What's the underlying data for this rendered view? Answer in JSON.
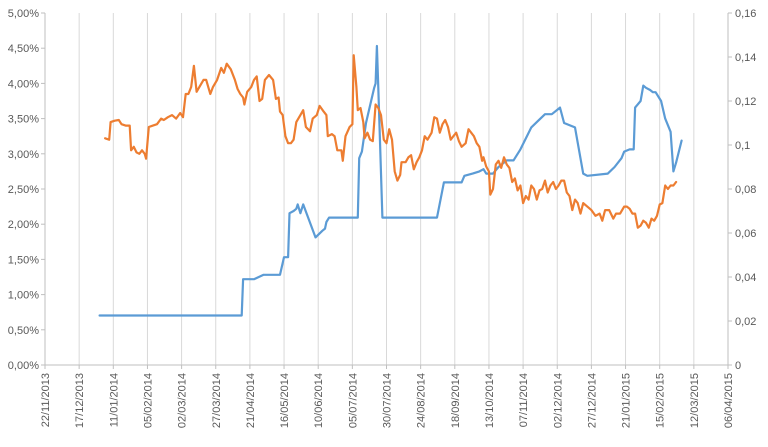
{
  "chart_data": {
    "type": "line",
    "title": "",
    "xlabel": "",
    "ylabel": "",
    "y2label": "",
    "grid": "vertical",
    "legend": "none",
    "x_ticks": [
      "22/11/2013",
      "17/12/2013",
      "11/01/2014",
      "05/02/2014",
      "02/03/2014",
      "27/03/2014",
      "21/04/2014",
      "16/05/2014",
      "10/06/2014",
      "05/07/2014",
      "30/07/2014",
      "24/08/2014",
      "18/09/2014",
      "13/10/2014",
      "07/11/2014",
      "02/12/2014",
      "27/12/2014",
      "21/01/2015",
      "15/02/2015",
      "12/03/2015",
      "06/04/2015"
    ],
    "xlim": [
      "2013-11-22",
      "2015-04-06"
    ],
    "y_left": {
      "ticks": [
        "0,00%",
        "0,50%",
        "1,00%",
        "1,50%",
        "2,00%",
        "2,50%",
        "3,00%",
        "3,50%",
        "4,00%",
        "4,50%",
        "5,00%"
      ],
      "range": [
        0,
        5.0
      ]
    },
    "y_right": {
      "ticks": [
        "0",
        "0,02",
        "0,04",
        "0,06",
        "0,08",
        "0,1",
        "0,12",
        "0,14",
        "0,16"
      ],
      "range": [
        0,
        0.16
      ]
    },
    "series": [
      {
        "axis": "right",
        "color": "#5b9bd5",
        "points": [
          [
            "2014-01-01",
            0.0225
          ],
          [
            "2014-04-15",
            0.0225
          ],
          [
            "2014-04-16",
            0.039
          ],
          [
            "2014-04-24",
            0.039
          ],
          [
            "2014-05-01",
            0.041
          ],
          [
            "2014-05-13",
            0.041
          ],
          [
            "2014-05-16",
            0.049
          ],
          [
            "2014-05-19",
            0.049
          ],
          [
            "2014-05-20",
            0.069
          ],
          [
            "2014-05-23",
            0.07
          ],
          [
            "2014-05-25",
            0.071
          ],
          [
            "2014-05-26",
            0.073
          ],
          [
            "2014-05-28",
            0.069
          ],
          [
            "2014-05-30",
            0.073
          ],
          [
            "2014-06-08",
            0.058
          ],
          [
            "2014-06-13",
            0.061
          ],
          [
            "2014-06-15",
            0.062
          ],
          [
            "2014-06-16",
            0.065
          ],
          [
            "2014-06-18",
            0.067
          ],
          [
            "2014-07-09",
            0.067
          ],
          [
            "2014-07-10",
            0.094
          ],
          [
            "2014-07-12",
            0.097
          ],
          [
            "2014-07-15",
            0.11
          ],
          [
            "2014-07-21",
            0.126
          ],
          [
            "2014-07-22",
            0.128
          ],
          [
            "2014-07-23",
            0.145
          ],
          [
            "2014-07-24",
            0.126
          ],
          [
            "2014-07-27",
            0.067
          ],
          [
            "2014-09-05",
            0.067
          ],
          [
            "2014-09-10",
            0.083
          ],
          [
            "2014-09-23",
            0.083
          ],
          [
            "2014-09-25",
            0.086
          ],
          [
            "2014-10-01",
            0.087
          ],
          [
            "2014-10-06",
            0.088
          ],
          [
            "2014-10-09",
            0.089
          ],
          [
            "2014-10-11",
            0.087
          ],
          [
            "2014-10-16",
            0.087
          ],
          [
            "2014-10-20",
            0.09
          ],
          [
            "2014-10-26",
            0.093
          ],
          [
            "2014-10-31",
            0.093
          ],
          [
            "2014-11-05",
            0.098
          ],
          [
            "2014-11-13",
            0.108
          ],
          [
            "2014-11-18",
            0.111
          ],
          [
            "2014-11-23",
            0.114
          ],
          [
            "2014-11-28",
            0.114
          ],
          [
            "2014-12-04",
            0.117
          ],
          [
            "2014-12-07",
            0.11
          ],
          [
            "2014-12-15",
            0.108
          ],
          [
            "2014-12-21",
            0.087
          ],
          [
            "2014-12-24",
            0.086
          ],
          [
            "2015-01-08",
            0.087
          ],
          [
            "2015-01-13",
            0.09
          ],
          [
            "2015-01-18",
            0.094
          ],
          [
            "2015-01-20",
            0.097
          ],
          [
            "2015-01-24",
            0.098
          ],
          [
            "2015-01-27",
            0.098
          ],
          [
            "2015-01-28",
            0.117
          ],
          [
            "2015-02-01",
            0.12
          ],
          [
            "2015-02-03",
            0.127
          ],
          [
            "2015-02-05",
            0.126
          ],
          [
            "2015-02-08",
            0.125
          ],
          [
            "2015-02-10",
            0.124
          ],
          [
            "2015-02-12",
            0.124
          ],
          [
            "2015-02-16",
            0.12
          ],
          [
            "2015-02-19",
            0.112
          ],
          [
            "2015-02-23",
            0.106
          ],
          [
            "2015-02-25",
            0.088
          ],
          [
            "2015-02-27",
            0.092
          ],
          [
            "2015-03-03",
            0.102
          ]
        ]
      },
      {
        "axis": "left",
        "color": "#ed7d31",
        "points": [
          [
            "2014-01-05",
            3.22
          ],
          [
            "2014-01-08",
            3.2
          ],
          [
            "2014-01-09",
            3.45
          ],
          [
            "2014-01-12",
            3.47
          ],
          [
            "2014-01-15",
            3.48
          ],
          [
            "2014-01-17",
            3.42
          ],
          [
            "2014-01-20",
            3.4
          ],
          [
            "2014-01-23",
            3.4
          ],
          [
            "2014-01-24",
            3.05
          ],
          [
            "2014-01-26",
            3.1
          ],
          [
            "2014-01-28",
            3.02
          ],
          [
            "2014-01-30",
            3.0
          ],
          [
            "2014-02-01",
            3.05
          ],
          [
            "2014-02-03",
            3.0
          ],
          [
            "2014-02-04",
            2.93
          ],
          [
            "2014-02-06",
            3.38
          ],
          [
            "2014-02-09",
            3.4
          ],
          [
            "2014-02-12",
            3.42
          ],
          [
            "2014-02-15",
            3.5
          ],
          [
            "2014-02-17",
            3.48
          ],
          [
            "2014-02-20",
            3.52
          ],
          [
            "2014-02-23",
            3.55
          ],
          [
            "2014-02-26",
            3.5
          ],
          [
            "2014-03-01",
            3.58
          ],
          [
            "2014-03-03",
            3.52
          ],
          [
            "2014-03-05",
            3.85
          ],
          [
            "2014-03-07",
            3.85
          ],
          [
            "2014-03-09",
            3.95
          ],
          [
            "2014-03-11",
            4.25
          ],
          [
            "2014-03-13",
            3.88
          ],
          [
            "2014-03-15",
            3.95
          ],
          [
            "2014-03-18",
            4.05
          ],
          [
            "2014-03-20",
            4.05
          ],
          [
            "2014-03-23",
            3.85
          ],
          [
            "2014-03-25",
            3.95
          ],
          [
            "2014-03-28",
            4.05
          ],
          [
            "2014-03-31",
            4.22
          ],
          [
            "2014-04-02",
            4.15
          ],
          [
            "2014-04-04",
            4.28
          ],
          [
            "2014-04-07",
            4.2
          ],
          [
            "2014-04-10",
            4.05
          ],
          [
            "2014-04-12",
            3.92
          ],
          [
            "2014-04-14",
            3.85
          ],
          [
            "2014-04-16",
            3.8
          ],
          [
            "2014-04-17",
            3.7
          ],
          [
            "2014-04-19",
            3.88
          ],
          [
            "2014-04-22",
            3.95
          ],
          [
            "2014-04-24",
            4.05
          ],
          [
            "2014-04-26",
            4.1
          ],
          [
            "2014-04-28",
            3.75
          ],
          [
            "2014-04-30",
            3.78
          ],
          [
            "2014-05-02",
            4.05
          ],
          [
            "2014-05-05",
            4.12
          ],
          [
            "2014-05-08",
            4.05
          ],
          [
            "2014-05-10",
            3.78
          ],
          [
            "2014-05-12",
            3.8
          ],
          [
            "2014-05-13",
            3.6
          ],
          [
            "2014-05-15",
            3.55
          ],
          [
            "2014-05-17",
            3.25
          ],
          [
            "2014-05-19",
            3.15
          ],
          [
            "2014-05-21",
            3.15
          ],
          [
            "2014-05-23",
            3.2
          ],
          [
            "2014-05-25",
            3.45
          ],
          [
            "2014-05-28",
            3.55
          ],
          [
            "2014-05-30",
            3.62
          ],
          [
            "2014-06-01",
            3.38
          ],
          [
            "2014-06-04",
            3.32
          ],
          [
            "2014-06-06",
            3.5
          ],
          [
            "2014-06-09",
            3.55
          ],
          [
            "2014-06-11",
            3.68
          ],
          [
            "2014-06-14",
            3.6
          ],
          [
            "2014-06-16",
            3.55
          ],
          [
            "2014-06-17",
            3.25
          ],
          [
            "2014-06-20",
            3.28
          ],
          [
            "2014-06-22",
            3.25
          ],
          [
            "2014-06-24",
            3.05
          ],
          [
            "2014-06-27",
            3.05
          ],
          [
            "2014-06-28",
            2.9
          ],
          [
            "2014-06-30",
            3.25
          ],
          [
            "2014-07-03",
            3.38
          ],
          [
            "2014-07-05",
            3.42
          ],
          [
            "2014-07-06",
            4.4
          ],
          [
            "2014-07-08",
            3.95
          ],
          [
            "2014-07-09",
            3.62
          ],
          [
            "2014-07-11",
            3.65
          ],
          [
            "2014-07-13",
            3.45
          ],
          [
            "2014-07-14",
            3.22
          ],
          [
            "2014-07-16",
            3.3
          ],
          [
            "2014-07-18",
            3.2
          ],
          [
            "2014-07-20",
            3.18
          ],
          [
            "2014-07-22",
            3.7
          ],
          [
            "2014-07-24",
            3.65
          ],
          [
            "2014-07-26",
            3.55
          ],
          [
            "2014-07-28",
            3.2
          ],
          [
            "2014-07-30",
            3.15
          ],
          [
            "2014-08-01",
            3.35
          ],
          [
            "2014-08-03",
            3.2
          ],
          [
            "2014-08-05",
            2.75
          ],
          [
            "2014-08-07",
            2.62
          ],
          [
            "2014-08-09",
            2.7
          ],
          [
            "2014-08-10",
            2.88
          ],
          [
            "2014-08-13",
            2.88
          ],
          [
            "2014-08-15",
            2.95
          ],
          [
            "2014-08-17",
            2.98
          ],
          [
            "2014-08-19",
            2.78
          ],
          [
            "2014-08-21",
            2.88
          ],
          [
            "2014-08-23",
            2.95
          ],
          [
            "2014-08-25",
            3.05
          ],
          [
            "2014-08-27",
            3.25
          ],
          [
            "2014-08-29",
            3.2
          ],
          [
            "2014-09-01",
            3.3
          ],
          [
            "2014-09-03",
            3.52
          ],
          [
            "2014-09-05",
            3.5
          ],
          [
            "2014-09-07",
            3.3
          ],
          [
            "2014-09-09",
            3.42
          ],
          [
            "2014-09-11",
            3.48
          ],
          [
            "2014-09-13",
            3.38
          ],
          [
            "2014-09-15",
            3.2
          ],
          [
            "2014-09-17",
            3.25
          ],
          [
            "2014-09-19",
            3.3
          ],
          [
            "2014-09-21",
            3.18
          ],
          [
            "2014-09-23",
            3.1
          ],
          [
            "2014-09-26",
            3.15
          ],
          [
            "2014-09-28",
            3.35
          ],
          [
            "2014-09-30",
            3.3
          ],
          [
            "2014-10-02",
            3.25
          ],
          [
            "2014-10-04",
            3.15
          ],
          [
            "2014-10-06",
            3.1
          ],
          [
            "2014-10-08",
            2.9
          ],
          [
            "2014-10-09",
            2.95
          ],
          [
            "2014-10-11",
            2.82
          ],
          [
            "2014-10-13",
            2.75
          ],
          [
            "2014-10-14",
            2.42
          ],
          [
            "2014-10-16",
            2.5
          ],
          [
            "2014-10-18",
            2.85
          ],
          [
            "2014-10-20",
            2.9
          ],
          [
            "2014-10-22",
            2.8
          ],
          [
            "2014-10-24",
            2.95
          ],
          [
            "2014-10-26",
            2.85
          ],
          [
            "2014-10-28",
            2.8
          ],
          [
            "2014-10-30",
            2.6
          ],
          [
            "2014-11-01",
            2.65
          ],
          [
            "2014-11-03",
            2.48
          ],
          [
            "2014-11-05",
            2.55
          ],
          [
            "2014-11-07",
            2.3
          ],
          [
            "2014-11-09",
            2.4
          ],
          [
            "2014-11-11",
            2.35
          ],
          [
            "2014-11-13",
            2.55
          ],
          [
            "2014-11-15",
            2.5
          ],
          [
            "2014-11-17",
            2.35
          ],
          [
            "2014-11-19",
            2.48
          ],
          [
            "2014-11-21",
            2.5
          ],
          [
            "2014-11-23",
            2.62
          ],
          [
            "2014-11-25",
            2.45
          ],
          [
            "2014-11-27",
            2.55
          ],
          [
            "2014-11-29",
            2.6
          ],
          [
            "2014-12-01",
            2.5
          ],
          [
            "2014-12-03",
            2.55
          ],
          [
            "2014-12-05",
            2.62
          ],
          [
            "2014-12-07",
            2.62
          ],
          [
            "2014-12-09",
            2.45
          ],
          [
            "2014-12-11",
            2.4
          ],
          [
            "2014-12-13",
            2.2
          ],
          [
            "2014-12-15",
            2.35
          ],
          [
            "2014-12-17",
            2.3
          ],
          [
            "2014-12-19",
            2.15
          ],
          [
            "2014-12-21",
            2.3
          ],
          [
            "2014-12-24",
            2.25
          ],
          [
            "2014-12-27",
            2.2
          ],
          [
            "2014-12-30",
            2.12
          ],
          [
            "2015-01-02",
            2.15
          ],
          [
            "2015-01-04",
            2.05
          ],
          [
            "2015-01-06",
            2.2
          ],
          [
            "2015-01-09",
            2.2
          ],
          [
            "2015-01-12",
            2.08
          ],
          [
            "2015-01-14",
            2.15
          ],
          [
            "2015-01-17",
            2.15
          ],
          [
            "2015-01-20",
            2.25
          ],
          [
            "2015-01-22",
            2.25
          ],
          [
            "2015-01-24",
            2.22
          ],
          [
            "2015-01-26",
            2.15
          ],
          [
            "2015-01-28",
            2.15
          ],
          [
            "2015-01-30",
            1.95
          ],
          [
            "2015-02-01",
            1.98
          ],
          [
            "2015-02-03",
            2.05
          ],
          [
            "2015-02-05",
            2.02
          ],
          [
            "2015-02-07",
            1.95
          ],
          [
            "2015-02-09",
            2.08
          ],
          [
            "2015-02-11",
            2.05
          ],
          [
            "2015-02-13",
            2.12
          ],
          [
            "2015-02-15",
            2.28
          ],
          [
            "2015-02-17",
            2.3
          ],
          [
            "2015-02-19",
            2.55
          ],
          [
            "2015-02-21",
            2.5
          ],
          [
            "2015-02-23",
            2.55
          ],
          [
            "2015-02-25",
            2.55
          ],
          [
            "2015-02-27",
            2.6
          ]
        ]
      }
    ]
  }
}
